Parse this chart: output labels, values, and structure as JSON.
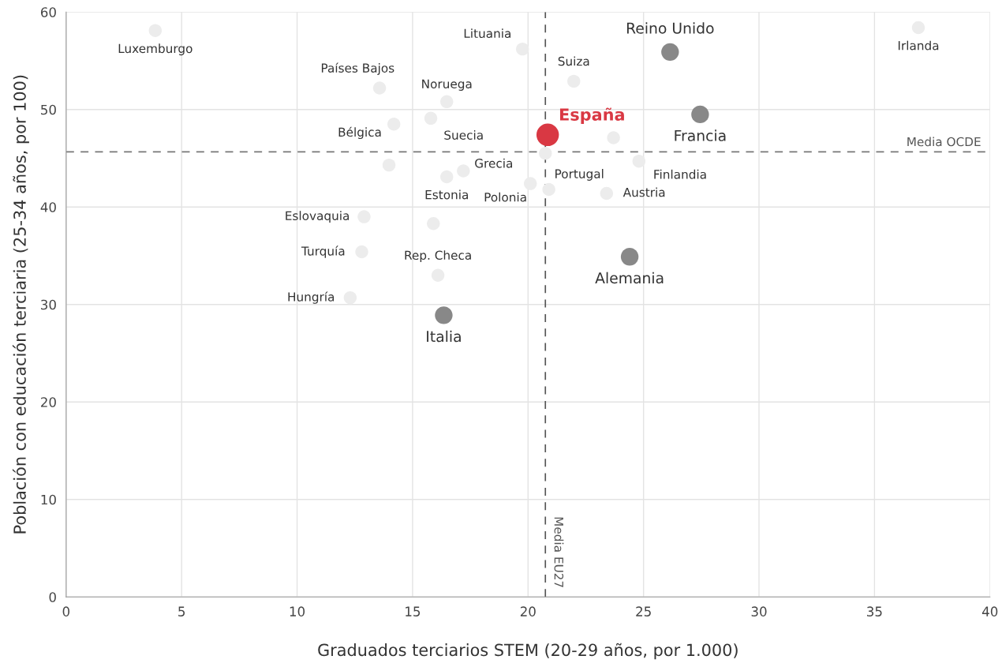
{
  "chart_data": {
    "type": "scatter",
    "xlabel": "Graduados terciarios STEM (20-29 años, por 1.000)",
    "ylabel": "Población con educación terciaria (25-34 años, por 100)",
    "xlim": [
      0,
      40
    ],
    "ylim": [
      0,
      60
    ],
    "xticks": [
      0,
      5,
      10,
      15,
      20,
      25,
      30,
      35,
      40
    ],
    "yticks": [
      0,
      10,
      20,
      30,
      40,
      50,
      60
    ],
    "grid": true,
    "marker": "circle",
    "series": [
      {
        "color": "#d93843",
        "x": [
          20.85
        ],
        "values": [
          47.4
        ]
      },
      {
        "color": "#888888",
        "x": [
          26.15,
          27.45,
          24.4,
          16.35
        ],
        "values": [
          55.9,
          49.5,
          34.9,
          28.9
        ]
      },
      {
        "color": "#ececec",
        "x": [
          19.76,
          3.86,
          36.9,
          21.98,
          13.57,
          16.48,
          14.19,
          15.79,
          17.2,
          16.48,
          20.1,
          20.9,
          24.8,
          23.4,
          12.9,
          12.8,
          16.1,
          12.3,
          23.7,
          20.75,
          13.98,
          15.9
        ],
        "values": [
          56.2,
          58.1,
          58.4,
          52.9,
          52.2,
          50.8,
          48.5,
          49.1,
          43.7,
          43.1,
          42.4,
          41.8,
          44.7,
          41.4,
          39.0,
          35.4,
          33.0,
          30.7,
          47.1,
          45.5,
          44.3,
          38.3
        ]
      }
    ],
    "ref_lines": [
      {
        "axis": "y",
        "value": 45.65,
        "label": "Media OCDE",
        "color": "#777777",
        "line_style": "dashed"
      },
      {
        "axis": "x",
        "value": 20.75,
        "label": "Media EU27",
        "color": "#555555",
        "line_style": "dashed"
      }
    ],
    "annotations": [
      {
        "text": "España",
        "x": 20.85,
        "y": 47.4
      },
      {
        "text": "Reino Unido",
        "x": 26.15,
        "y": 55.9
      },
      {
        "text": "Francia",
        "x": 27.45,
        "y": 49.5
      },
      {
        "text": "Alemania",
        "x": 24.4,
        "y": 34.9
      },
      {
        "text": "Italia",
        "x": 16.35,
        "y": 28.9
      },
      {
        "text": "Lituania",
        "x": 19.76,
        "y": 56.2
      },
      {
        "text": "Luxemburgo",
        "x": 3.86,
        "y": 58.1
      },
      {
        "text": "Irlanda",
        "x": 36.9,
        "y": 58.4
      },
      {
        "text": "Suiza",
        "x": 21.98,
        "y": 52.9
      },
      {
        "text": "Países Bajos",
        "x": 13.57,
        "y": 52.2
      },
      {
        "text": "Noruega",
        "x": 16.48,
        "y": 50.8
      },
      {
        "text": "Bélgica",
        "x": 14.19,
        "y": 48.5
      },
      {
        "text": "Suecia",
        "x": 15.79,
        "y": 49.1
      },
      {
        "text": "Grecia",
        "x": 17.2,
        "y": 43.7
      },
      {
        "text": "Estonia",
        "x": 16.48,
        "y": 43.1
      },
      {
        "text": "Polonia",
        "x": 20.1,
        "y": 42.4
      },
      {
        "text": "Portugal",
        "x": 20.9,
        "y": 41.8
      },
      {
        "text": "Finlandia",
        "x": 24.8,
        "y": 44.7
      },
      {
        "text": "Austria",
        "x": 23.4,
        "y": 41.4
      },
      {
        "text": "Eslovaquia",
        "x": 12.9,
        "y": 39.0
      },
      {
        "text": "Turquía",
        "x": 12.8,
        "y": 35.4
      },
      {
        "text": "Rep. Checa",
        "x": 16.1,
        "y": 33.0
      },
      {
        "text": "Hungría",
        "x": 12.3,
        "y": 30.7
      }
    ]
  }
}
